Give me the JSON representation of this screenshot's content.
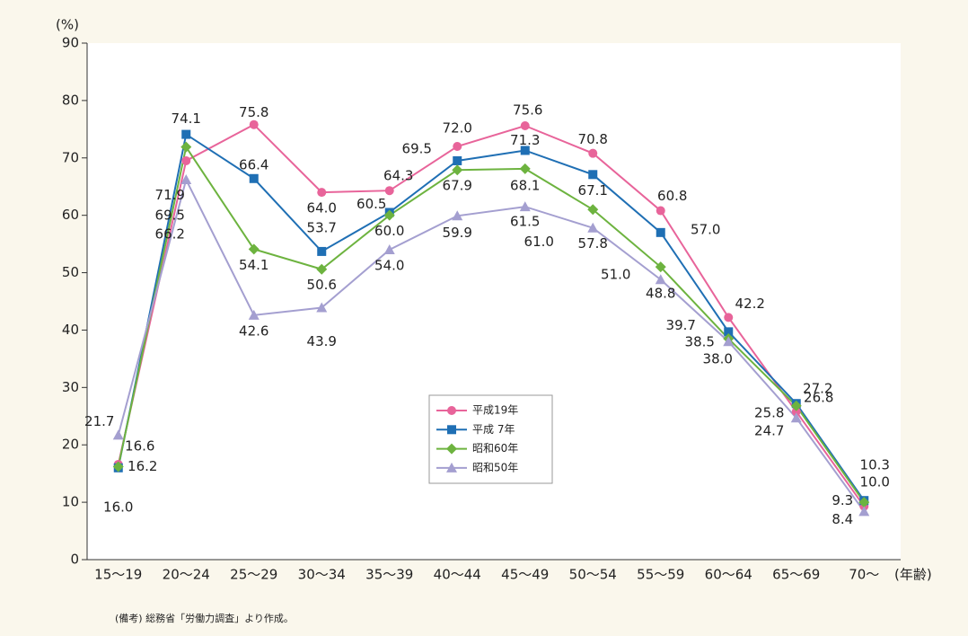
{
  "chart_data": {
    "type": "line",
    "y_label": "(%)",
    "x_label": "(年齢)",
    "note": "(備考) 総務省「労働力調査」より作成。",
    "categories": [
      "15〜19",
      "20〜24",
      "25〜29",
      "30〜34",
      "35〜39",
      "40〜44",
      "45〜49",
      "50〜54",
      "55〜59",
      "60〜64",
      "65〜69",
      "70〜"
    ],
    "ylim": [
      0,
      90
    ],
    "yticks": [
      0,
      10,
      20,
      30,
      40,
      50,
      60,
      70,
      80,
      90
    ],
    "legend": "center",
    "series": [
      {
        "name": "平成19年",
        "color": "#e8649a",
        "marker": "circle",
        "values": [
          16.6,
          69.5,
          75.8,
          64.0,
          64.3,
          72.0,
          75.6,
          70.8,
          60.8,
          42.2,
          25.8,
          9.3
        ],
        "value_labels": [
          "16.6",
          "69.5",
          "75.8",
          "64.0",
          "64.3",
          "72.0",
          "75.6",
          "70.8",
          "60.8",
          "42.2",
          "25.8",
          "9.3"
        ]
      },
      {
        "name": "平成 7年",
        "color": "#1f6fb4",
        "marker": "square",
        "values": [
          16.0,
          74.1,
          66.4,
          53.7,
          60.5,
          69.5,
          71.3,
          67.1,
          57.0,
          39.7,
          27.2,
          10.3
        ],
        "value_labels": [
          "16.0",
          "74.1",
          "66.4",
          "53.7",
          "60.5",
          "69.5",
          "71.3",
          "67.1",
          "57.0",
          "39.7",
          "27.2",
          "10.3"
        ]
      },
      {
        "name": "昭和60年",
        "color": "#6db33f",
        "marker": "diamond",
        "values": [
          16.2,
          71.9,
          54.1,
          50.6,
          60.0,
          67.9,
          68.1,
          61.0,
          51.0,
          38.5,
          26.8,
          10.0
        ],
        "value_labels": [
          "16.2",
          "71.9",
          "54.1",
          "50.6",
          "60.0",
          "67.9",
          "68.1",
          "61.0",
          "51.0",
          "38.5",
          "26.8",
          "10.0"
        ]
      },
      {
        "name": "昭和50年",
        "color": "#a49fd0",
        "marker": "triangle",
        "values": [
          21.7,
          66.2,
          42.6,
          43.9,
          54.0,
          59.9,
          61.5,
          57.8,
          48.8,
          38.0,
          24.7,
          8.4
        ],
        "value_labels": [
          "21.7",
          "66.2",
          "42.6",
          "43.9",
          "54.0",
          "59.9",
          "61.5",
          "57.8",
          "48.8",
          "38.0",
          "24.7",
          "8.4"
        ]
      }
    ]
  }
}
